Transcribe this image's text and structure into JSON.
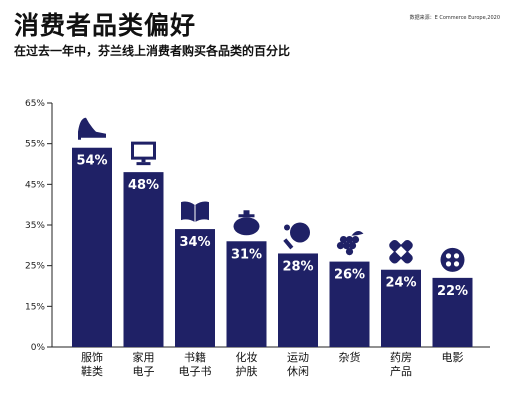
{
  "header": {
    "title": "消费者品类偏好",
    "subtitle": "在过去一年中，芬兰线上消费者购买各品类的百分比",
    "source": "数据来源：E Commerce Europe,2020"
  },
  "colors": {
    "bar": "#1f2166",
    "axis": "#222222",
    "value_text": "#ffffff"
  },
  "chart_data": {
    "type": "bar",
    "title": "消费者品类偏好",
    "subtitle": "在过去一年中，芬兰线上消费者购买各品类的百分比",
    "categories": [
      [
        "服饰",
        "鞋类"
      ],
      [
        "家用",
        "电子"
      ],
      [
        "书籍",
        "电子书"
      ],
      [
        "化妆",
        "护肤"
      ],
      [
        "运动",
        "休闲"
      ],
      [
        "杂货"
      ],
      [
        "药房",
        "产品"
      ],
      [
        "电影"
      ]
    ],
    "values": [
      54,
      48,
      34,
      31,
      28,
      26,
      24,
      22
    ],
    "value_labels": [
      "54%",
      "48%",
      "34%",
      "31%",
      "28%",
      "26%",
      "24%",
      "22%"
    ],
    "icons": [
      "high-heel-shoe-icon",
      "computer-monitor-icon",
      "open-book-icon",
      "perfume-bottle-icon",
      "ping-pong-paddle-icon",
      "grapes-icon",
      "bandage-icon",
      "film-camera-icon"
    ],
    "yticks": [
      "0%",
      "15%",
      "25%",
      "35%",
      "45%",
      "55%",
      "65%"
    ],
    "ylim": [
      0,
      65
    ],
    "grid": false,
    "legend": "none"
  }
}
